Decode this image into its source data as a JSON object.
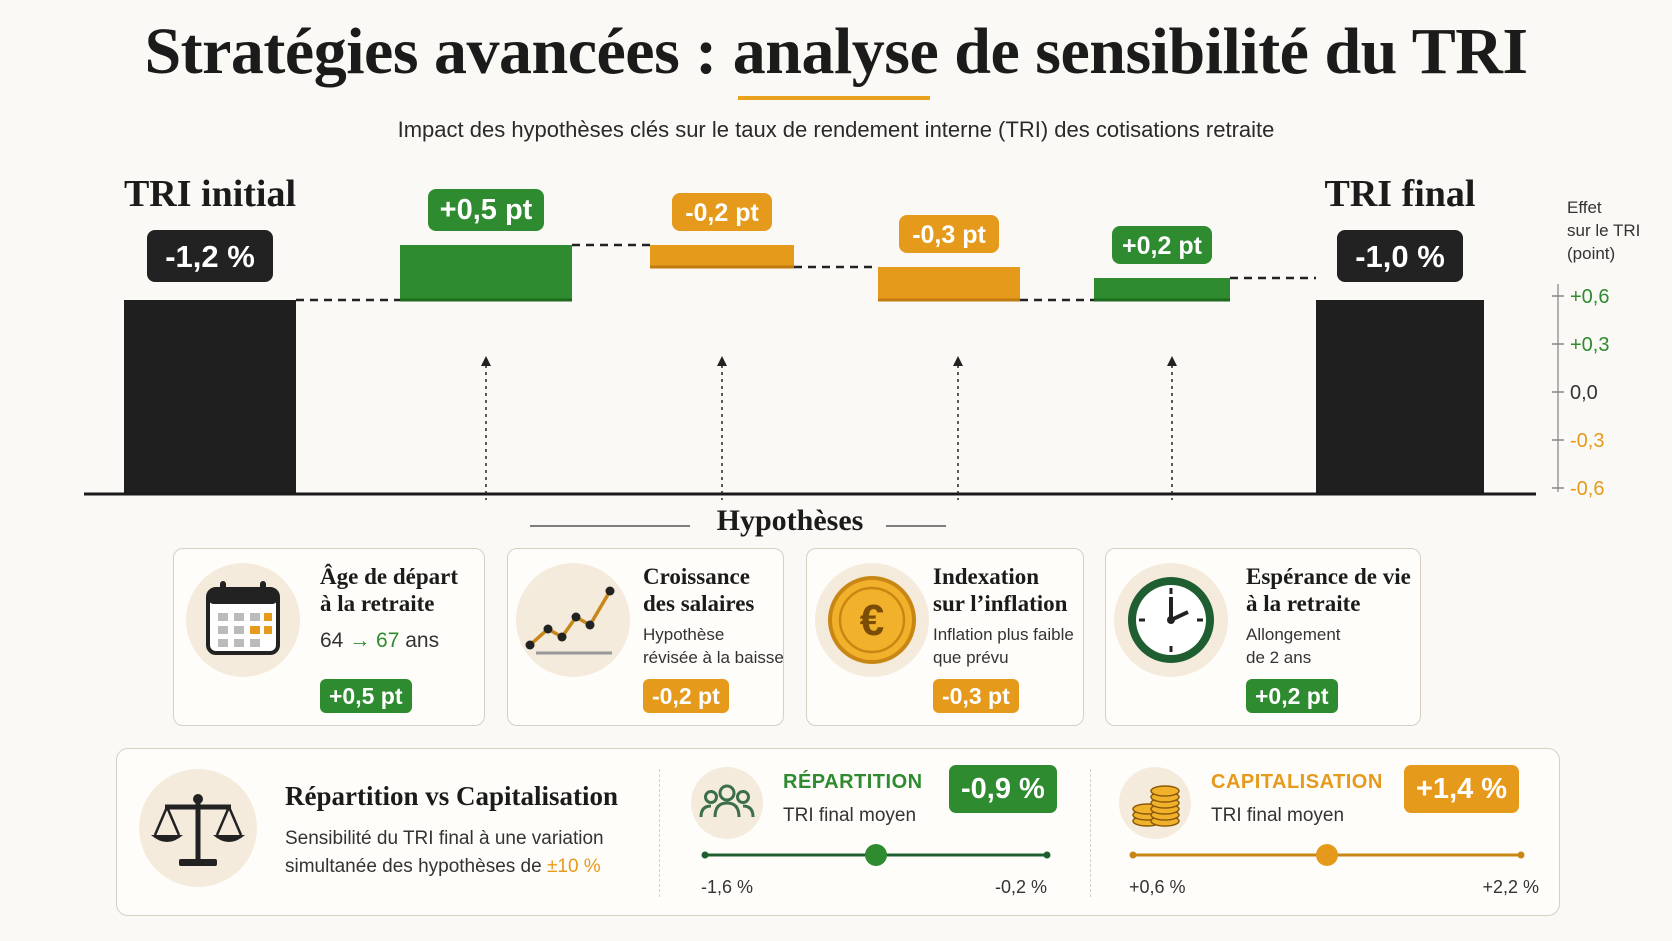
{
  "title": "Stratégies avancées : analyse de sensibilité du TRI",
  "subtitle": "Impact des hypothèses clés sur le taux de rendement interne (TRI) des cotisations retraite",
  "colors": {
    "positive": "#2e8b2f",
    "negative": "#e69a1c",
    "total": "#1f1f1f",
    "accent": "#e8a21c"
  },
  "chart_data": {
    "type": "bar",
    "subtype": "waterfall",
    "categories": [
      "TRI initial",
      "Âge de départ à la retraite",
      "Croissance des salaires",
      "Indexation sur l’inflation",
      "Espérance de vie à la retraite",
      "TRI final"
    ],
    "total_labels": [
      "TRI initial",
      "TRI final"
    ],
    "values": [
      -1.2,
      0.5,
      -0.2,
      -0.3,
      0.2,
      -1.0
    ],
    "value_labels": [
      "-1,2 %",
      "+0,5 pt",
      "-0,2 pt",
      "-0,3 pt",
      "+0,2 pt",
      "-1,0 %"
    ],
    "ylabel_lines": [
      "Effet",
      "sur le TRI",
      "(point)"
    ],
    "ytick_values": [
      0.6,
      0.3,
      0.0,
      -0.3,
      -0.6
    ],
    "ytick_labels": [
      "+0,6",
      "+0,3",
      "0,0",
      "-0,3",
      "-0,6"
    ],
    "ylim": [
      -0.6,
      0.6
    ],
    "grid": false,
    "legend": "none"
  },
  "hypotheses_title": "Hypothèses",
  "hypotheses": [
    {
      "title_lines": [
        "Âge de départ",
        "à la retraite"
      ],
      "from": "64",
      "arrow": "→",
      "to": "67",
      "unit": "ans",
      "badge": "+0,5 pt",
      "icon": "calendar-icon"
    },
    {
      "title_lines": [
        "Croissance",
        "des salaires"
      ],
      "desc_lines": [
        "Hypothèse",
        "révisée à la baisse"
      ],
      "badge": "-0,2 pt",
      "icon": "trend-chart-icon"
    },
    {
      "title_lines": [
        "Indexation",
        "sur l’inflation"
      ],
      "desc_lines": [
        "Inflation plus faible",
        "que prévu"
      ],
      "badge": "-0,3 pt",
      "icon": "euro-coin-icon"
    },
    {
      "title_lines": [
        "Espérance de vie",
        "à la retraite"
      ],
      "desc_lines": [
        "Allongement",
        "de 2 ans"
      ],
      "badge": "+0,2 pt",
      "icon": "clock-icon"
    }
  ],
  "comparison": {
    "title": "Répartition vs Capitalisation",
    "desc_line1": "Sensibilité du TRI final à une variation",
    "desc_line2_prefix": "simultanée des hypothèses de ",
    "desc_highlight": "±10 %",
    "icon": "balance-scale-icon",
    "modes": [
      {
        "name": "RÉPARTITION",
        "sub": "TRI final moyen",
        "value": "-0,9 %",
        "mean": -0.9,
        "min": -1.6,
        "max": -0.2,
        "min_label": "-1,6 %",
        "max_label": "-0,2 %",
        "icon": "people-icon"
      },
      {
        "name": "CAPITALISATION",
        "sub": "TRI final moyen",
        "value": "+1,4 %",
        "mean": 1.4,
        "min": 0.6,
        "max": 2.2,
        "min_label": "+0,6 %",
        "max_label": "+2,2 %",
        "icon": "coins-stack-icon"
      }
    ]
  }
}
